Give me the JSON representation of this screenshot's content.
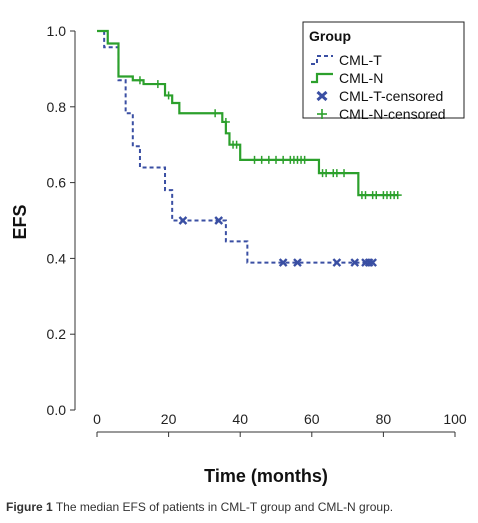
{
  "chart_data": {
    "type": "line",
    "ylabel": "EFS",
    "xlabel": "Time (months)",
    "xlim": [
      0,
      100
    ],
    "ylim": [
      0,
      1.0
    ],
    "x_ticks": [
      "0",
      "20",
      "40",
      "60",
      "80",
      "100"
    ],
    "y_ticks": [
      "0.0",
      "0.2",
      "0.4",
      "0.6",
      "0.8",
      "1.0"
    ],
    "grid": false,
    "legend": {
      "title": "Group",
      "position": "top-right",
      "entries": [
        "CML-T",
        "CML-N",
        "CML-T-censored",
        "CML-N-censored"
      ]
    },
    "colors": {
      "cml_t": "#3a4fa3",
      "cml_n": "#2ca02c"
    },
    "series": [
      {
        "name": "CML-T",
        "line_style": "dashed",
        "steps": [
          [
            0,
            1.0
          ],
          [
            2,
            0.957
          ],
          [
            6,
            0.87
          ],
          [
            8,
            0.783
          ],
          [
            10,
            0.696
          ],
          [
            12,
            0.64
          ],
          [
            19,
            0.58
          ],
          [
            21,
            0.5
          ],
          [
            36,
            0.445
          ],
          [
            42,
            0.389
          ],
          [
            78,
            0.389
          ]
        ],
        "censored": [
          [
            24,
            0.5
          ],
          [
            34,
            0.5
          ],
          [
            52,
            0.389
          ],
          [
            56,
            0.389
          ],
          [
            67,
            0.389
          ],
          [
            72,
            0.389
          ],
          [
            75,
            0.389
          ],
          [
            76,
            0.389
          ],
          [
            77,
            0.389
          ]
        ]
      },
      {
        "name": "CML-N",
        "line_style": "solid",
        "steps": [
          [
            0,
            1.0
          ],
          [
            3,
            0.967
          ],
          [
            6,
            0.88
          ],
          [
            10,
            0.87
          ],
          [
            13,
            0.86
          ],
          [
            19,
            0.83
          ],
          [
            21,
            0.81
          ],
          [
            23,
            0.783
          ],
          [
            35,
            0.76
          ],
          [
            36,
            0.73
          ],
          [
            37,
            0.7
          ],
          [
            40,
            0.66
          ],
          [
            62,
            0.625
          ],
          [
            73,
            0.567
          ],
          [
            84,
            0.567
          ]
        ],
        "censored": [
          [
            12,
            0.87
          ],
          [
            17,
            0.86
          ],
          [
            20,
            0.83
          ],
          [
            33,
            0.783
          ],
          [
            36,
            0.76
          ],
          [
            38,
            0.7
          ],
          [
            39,
            0.7
          ],
          [
            44,
            0.66
          ],
          [
            46,
            0.66
          ],
          [
            48,
            0.66
          ],
          [
            50,
            0.66
          ],
          [
            52,
            0.66
          ],
          [
            54,
            0.66
          ],
          [
            55,
            0.66
          ],
          [
            56,
            0.66
          ],
          [
            57,
            0.66
          ],
          [
            58,
            0.66
          ],
          [
            63,
            0.625
          ],
          [
            64,
            0.625
          ],
          [
            66,
            0.625
          ],
          [
            67,
            0.625
          ],
          [
            69,
            0.625
          ],
          [
            74,
            0.567
          ],
          [
            75,
            0.567
          ],
          [
            77,
            0.567
          ],
          [
            78,
            0.567
          ],
          [
            80,
            0.567
          ],
          [
            81,
            0.567
          ],
          [
            82,
            0.567
          ],
          [
            83,
            0.567
          ],
          [
            84,
            0.567
          ]
        ]
      }
    ]
  },
  "caption": {
    "label": "Figure 1",
    "text": "The median EFS of patients in CML-T group and CML-N group."
  }
}
